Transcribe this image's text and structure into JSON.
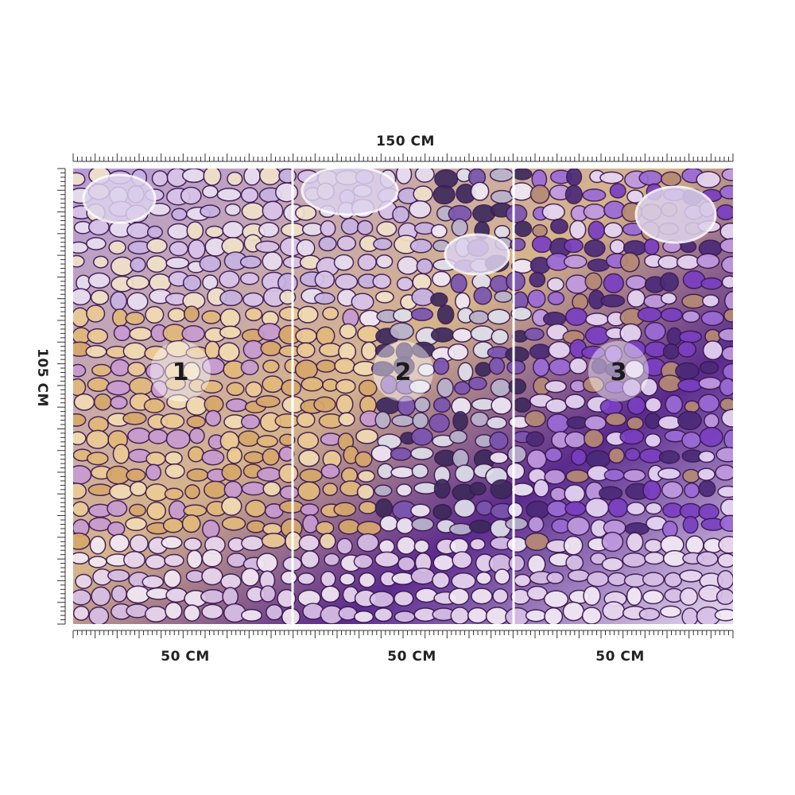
{
  "dimensions": {
    "width_label": "150 CM",
    "height_label": "105 CM",
    "panel_widths": [
      "50 CM",
      "50 CM",
      "50 CM"
    ]
  },
  "panels": [
    {
      "label": "1"
    },
    {
      "label": "2"
    },
    {
      "label": "3"
    }
  ]
}
